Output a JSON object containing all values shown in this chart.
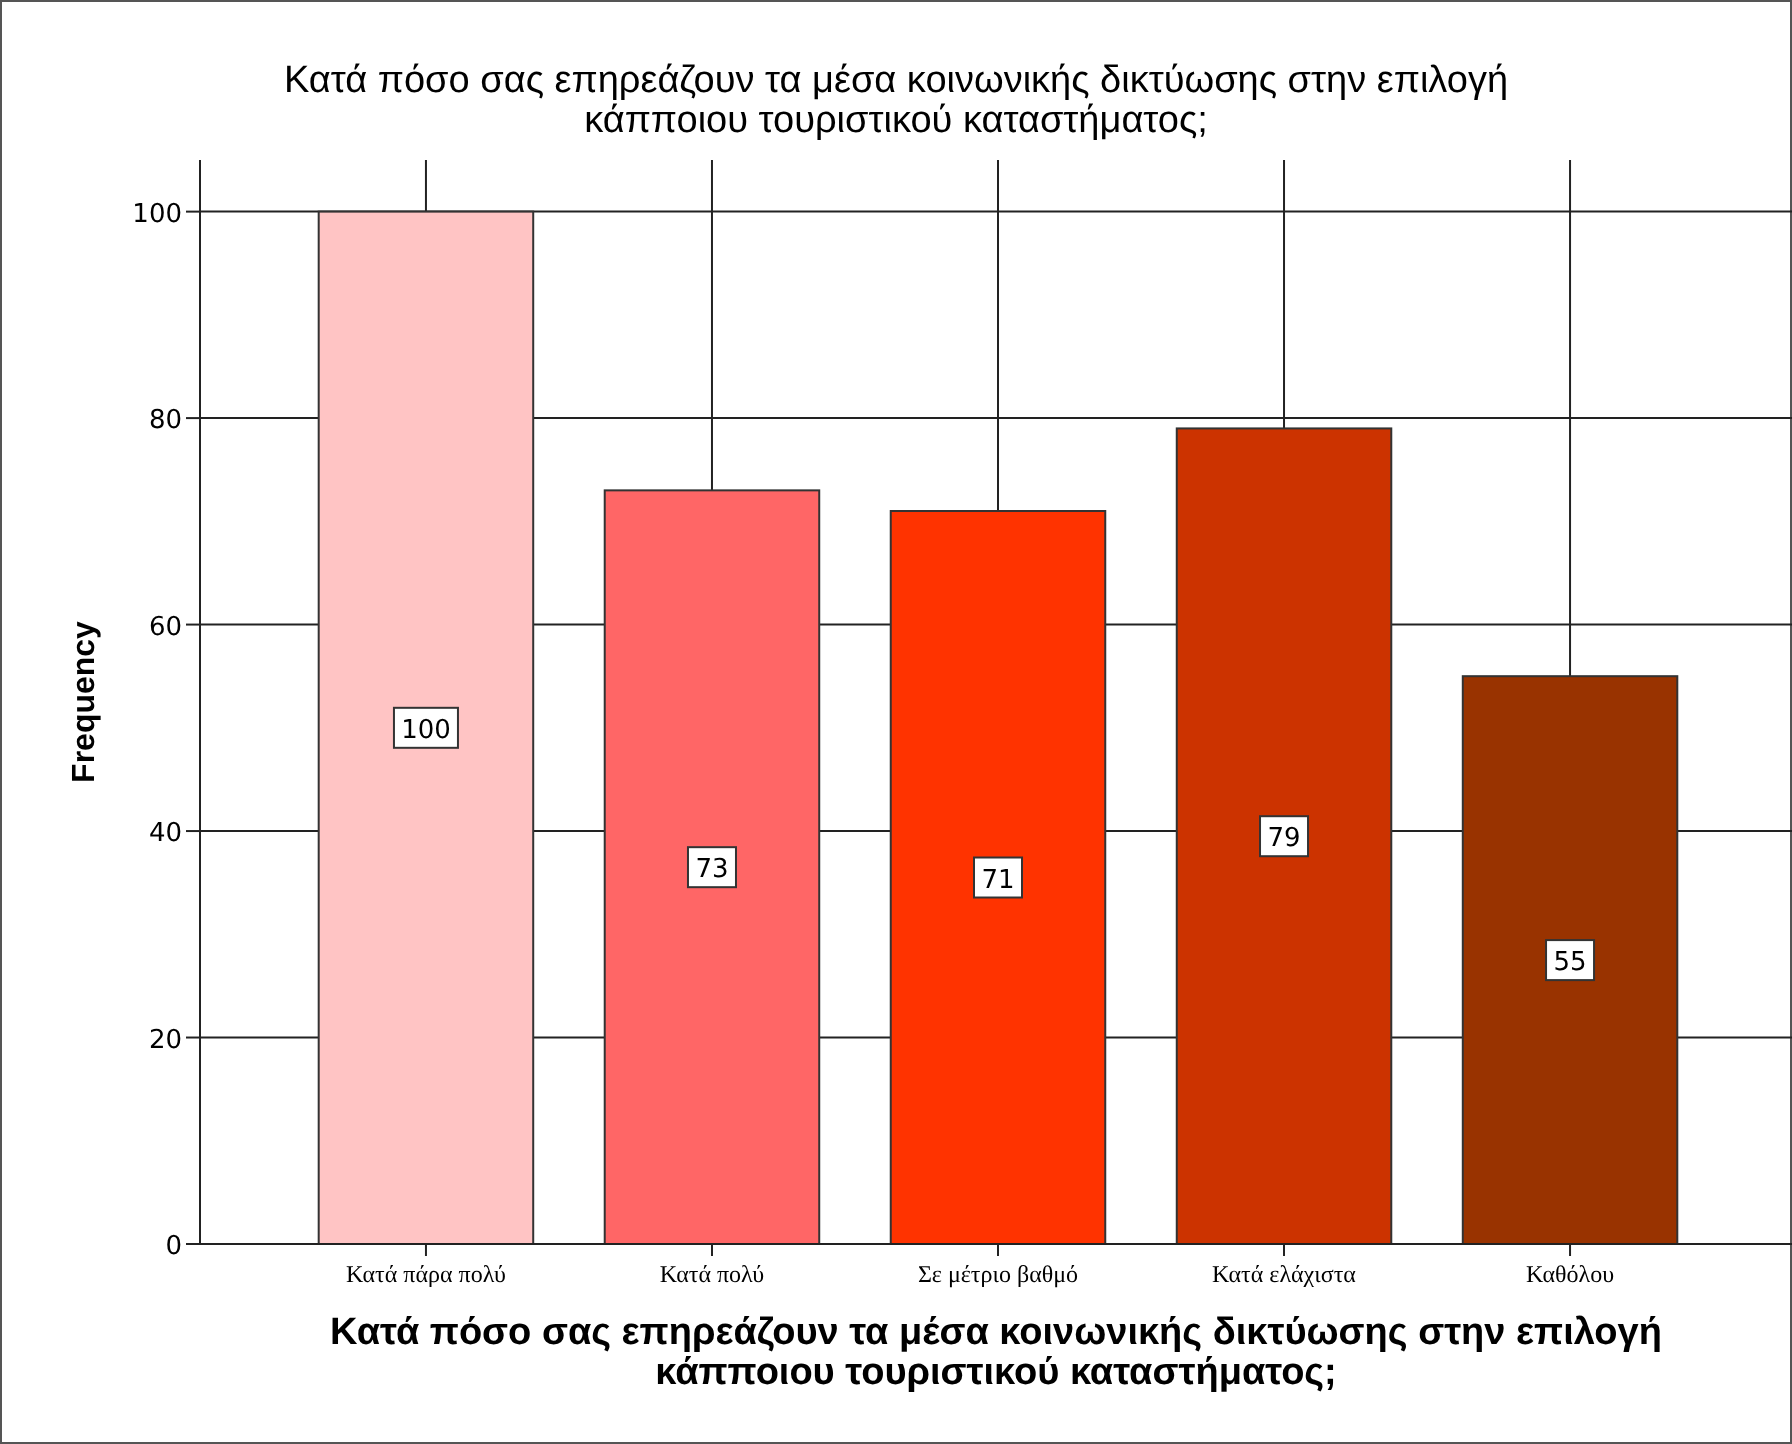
{
  "chart_data": {
    "type": "bar",
    "title": "Κατά πόσο σας επηρεάζουν τα μέσα κοινωνικής δικτύωσης στην επιλογή\nκάπποιου τουριστικού καταστήματος;",
    "xlabel": "Κατά πόσο σας επηρεάζουν τα μέσα κοινωνικής δικτύωσης στην επιλογή\nκάπποιου τουριστικού καταστήματος;",
    "ylabel": "Frequency",
    "categories": [
      "Κατά πάρα πολύ",
      "Κατά πολύ",
      "Σε μέτριο βαθμό",
      "Κατά ελάχιστα",
      "Καθόλου"
    ],
    "values": [
      100,
      73,
      71,
      79,
      55
    ],
    "colors": [
      "#ffc4c4",
      "#ff6666",
      "#ff3300",
      "#cc3300",
      "#993300"
    ],
    "ylim": [
      0,
      105
    ],
    "yticks": [
      0,
      20,
      40,
      60,
      80,
      100
    ],
    "grid": true,
    "data_labels": true
  }
}
